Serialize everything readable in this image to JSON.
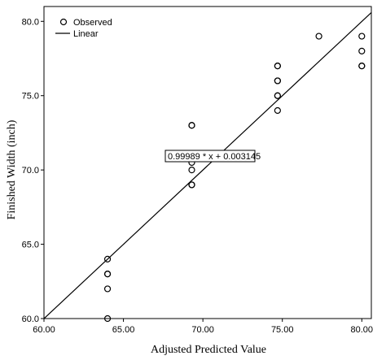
{
  "chart_data": {
    "type": "scatter",
    "xlabel": "Adjusted Predicted Value",
    "ylabel": "Finished Width (inch)",
    "xlim": [
      60,
      80.6
    ],
    "ylim": [
      60,
      81
    ],
    "x_ticks": [
      {
        "value": 60,
        "label": "60.00"
      },
      {
        "value": 65,
        "label": "65.00"
      },
      {
        "value": 70,
        "label": "70.00"
      },
      {
        "value": 75,
        "label": "75.00"
      },
      {
        "value": 80,
        "label": "80.00"
      }
    ],
    "y_ticks": [
      {
        "value": 60,
        "label": "60.0"
      },
      {
        "value": 65,
        "label": "65.0"
      },
      {
        "value": 70,
        "label": "70.0"
      },
      {
        "value": 75,
        "label": "75.0"
      },
      {
        "value": 80,
        "label": "80.0"
      }
    ],
    "legend": {
      "position": "top-left",
      "entries": [
        {
          "label": "Observed",
          "marker": "circle"
        },
        {
          "label": "Linear",
          "marker": "line"
        }
      ]
    },
    "series": [
      {
        "name": "Observed",
        "points": [
          {
            "x": 64.0,
            "y": 60.0
          },
          {
            "x": 64.0,
            "y": 62.0
          },
          {
            "x": 64.0,
            "y": 63.0
          },
          {
            "x": 64.0,
            "y": 63.0
          },
          {
            "x": 64.0,
            "y": 64.0
          },
          {
            "x": 69.3,
            "y": 69.0
          },
          {
            "x": 69.3,
            "y": 69.0
          },
          {
            "x": 69.3,
            "y": 70.0
          },
          {
            "x": 69.3,
            "y": 70.5
          },
          {
            "x": 69.3,
            "y": 73.0
          },
          {
            "x": 69.3,
            "y": 73.0
          },
          {
            "x": 74.7,
            "y": 74.0
          },
          {
            "x": 74.7,
            "y": 75.0
          },
          {
            "x": 74.7,
            "y": 75.0
          },
          {
            "x": 74.7,
            "y": 76.0
          },
          {
            "x": 74.7,
            "y": 76.0
          },
          {
            "x": 74.7,
            "y": 77.0
          },
          {
            "x": 74.7,
            "y": 77.0
          },
          {
            "x": 77.3,
            "y": 79.0
          },
          {
            "x": 80.0,
            "y": 77.0
          },
          {
            "x": 80.0,
            "y": 77.0
          },
          {
            "x": 80.0,
            "y": 78.0
          },
          {
            "x": 80.0,
            "y": 79.0
          }
        ]
      },
      {
        "name": "Linear",
        "fit": {
          "slope": 0.99989,
          "intercept": 0.003145
        },
        "equation_label": "0.99989 * x + 0.003145"
      }
    ],
    "grid": false,
    "marker_color": "#000000",
    "line_color": "#000000"
  }
}
